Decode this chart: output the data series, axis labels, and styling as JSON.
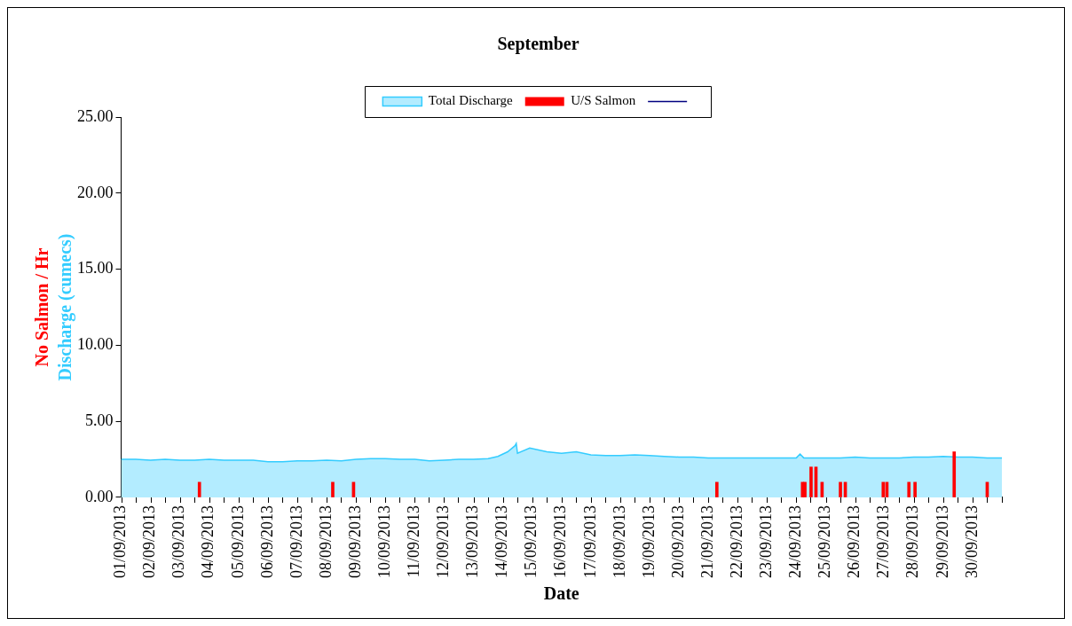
{
  "chart_data": {
    "type": "area",
    "title": "September",
    "xlabel": "Date",
    "ylabel": [
      "No Salmon / Hr",
      "Discharge (cumecs)"
    ],
    "xlim": [
      "2013-09-01",
      "2013-10-01"
    ],
    "xticks": [
      {
        "value": "2013-09-01",
        "label": "01/09/2013"
      },
      {
        "value": "2013-09-02",
        "label": "02/09/2013"
      },
      {
        "value": "2013-09-03",
        "label": "03/09/2013"
      },
      {
        "value": "2013-09-04",
        "label": "04/09/2013"
      },
      {
        "value": "2013-09-05",
        "label": "05/09/2013"
      },
      {
        "value": "2013-09-06",
        "label": "06/09/2013"
      },
      {
        "value": "2013-09-07",
        "label": "07/09/2013"
      },
      {
        "value": "2013-09-08",
        "label": "08/09/2013"
      },
      {
        "value": "2013-09-09",
        "label": "09/09/2013"
      },
      {
        "value": "2013-09-10",
        "label": "10/09/2013"
      },
      {
        "value": "2013-09-11",
        "label": "11/09/2013"
      },
      {
        "value": "2013-09-12",
        "label": "12/09/2013"
      },
      {
        "value": "2013-09-13",
        "label": "13/09/2013"
      },
      {
        "value": "2013-09-14",
        "label": "14/09/2013"
      },
      {
        "value": "2013-09-15",
        "label": "15/09/2013"
      },
      {
        "value": "2013-09-16",
        "label": "16/09/2013"
      },
      {
        "value": "2013-09-17",
        "label": "17/09/2013"
      },
      {
        "value": "2013-09-18",
        "label": "18/09/2013"
      },
      {
        "value": "2013-09-19",
        "label": "19/09/2013"
      },
      {
        "value": "2013-09-20",
        "label": "20/09/2013"
      },
      {
        "value": "2013-09-21",
        "label": "21/09/2013"
      },
      {
        "value": "2013-09-22",
        "label": "22/09/2013"
      },
      {
        "value": "2013-09-23",
        "label": "23/09/2013"
      },
      {
        "value": "2013-09-24",
        "label": "24/09/2013"
      },
      {
        "value": "2013-09-25",
        "label": "25/09/2013"
      },
      {
        "value": "2013-09-26",
        "label": "26/09/2013"
      },
      {
        "value": "2013-09-27",
        "label": "27/09/2013"
      },
      {
        "value": "2013-09-28",
        "label": "28/09/2013"
      },
      {
        "value": "2013-09-29",
        "label": "29/09/2013"
      },
      {
        "value": "2013-09-30",
        "label": "30/09/2013"
      },
      {
        "value": "2013-10-01",
        "label": null
      }
    ],
    "ylim": [
      0,
      25
    ],
    "yticks": [
      {
        "value": 0,
        "label": "0.00"
      },
      {
        "value": 5,
        "label": "5.00"
      },
      {
        "value": 10,
        "label": "10.00"
      },
      {
        "value": 15,
        "label": "15.00"
      },
      {
        "value": 20,
        "label": "20.00"
      },
      {
        "value": 25,
        "label": "25.00"
      }
    ],
    "grid": false,
    "legend": "top",
    "series": [
      {
        "name": "Total Discharge",
        "color": "#33ccff",
        "x": [
          "2013-09-01T00:00",
          "2013-09-01T12:00",
          "2013-09-02T00:00",
          "2013-09-02T12:00",
          "2013-09-03T00:00",
          "2013-09-03T12:00",
          "2013-09-04T00:00",
          "2013-09-04T12:00",
          "2013-09-05T00:00",
          "2013-09-05T12:00",
          "2013-09-06T00:00",
          "2013-09-06T12:00",
          "2013-09-07T00:00",
          "2013-09-07T12:00",
          "2013-09-08T00:00",
          "2013-09-08T12:00",
          "2013-09-09T00:00",
          "2013-09-09T12:00",
          "2013-09-10T00:00",
          "2013-09-10T12:00",
          "2013-09-11T00:00",
          "2013-09-11T12:00",
          "2013-09-12T00:00",
          "2013-09-12T12:00",
          "2013-09-13T00:00",
          "2013-09-13T12:00",
          "2013-09-13T20:00",
          "2013-09-14T04:00",
          "2013-09-14T10:00",
          "2013-09-14T11:00",
          "2013-09-14T12:00",
          "2013-09-14T22:00",
          "2013-09-15T12:00",
          "2013-09-16T00:00",
          "2013-09-16T12:00",
          "2013-09-17T00:00",
          "2013-09-17T12:00",
          "2013-09-18T00:00",
          "2013-09-18T12:00",
          "2013-09-19T00:00",
          "2013-09-19T12:00",
          "2013-09-20T00:00",
          "2013-09-20T12:00",
          "2013-09-21T00:00",
          "2013-09-21T12:00",
          "2013-09-22T00:00",
          "2013-09-22T12:00",
          "2013-09-23T00:00",
          "2013-09-23T12:00",
          "2013-09-24T00:00",
          "2013-09-24T03:00",
          "2013-09-24T06:00",
          "2013-09-24T12:00",
          "2013-09-25T00:00",
          "2013-09-25T12:00",
          "2013-09-26T00:00",
          "2013-09-26T12:00",
          "2013-09-27T00:00",
          "2013-09-27T12:00",
          "2013-09-28T00:00",
          "2013-09-28T12:00",
          "2013-09-29T00:00",
          "2013-09-29T12:00",
          "2013-09-30T00:00",
          "2013-09-30T12:00",
          "2013-10-01T00:00"
        ],
        "values": [
          2.5,
          2.5,
          2.45,
          2.5,
          2.45,
          2.45,
          2.5,
          2.45,
          2.45,
          2.45,
          2.35,
          2.35,
          2.4,
          2.4,
          2.45,
          2.4,
          2.5,
          2.55,
          2.55,
          2.5,
          2.5,
          2.4,
          2.45,
          2.5,
          2.5,
          2.55,
          2.7,
          3.0,
          3.4,
          3.55,
          2.9,
          3.25,
          3.0,
          2.9,
          3.0,
          2.8,
          2.75,
          2.75,
          2.8,
          2.75,
          2.7,
          2.65,
          2.65,
          2.6,
          2.6,
          2.6,
          2.6,
          2.6,
          2.6,
          2.6,
          2.85,
          2.6,
          2.6,
          2.6,
          2.6,
          2.65,
          2.6,
          2.6,
          2.6,
          2.65,
          2.65,
          2.7,
          2.65,
          2.65,
          2.6,
          2.6
        ]
      },
      {
        "type": "bar",
        "name": "U/S Salmon",
        "color": "#ff0000",
        "x": [
          "2013-09-03T16:00",
          "2013-09-08T05:00",
          "2013-09-08T22:00",
          "2013-09-21T07:00",
          "2013-09-24T05:00",
          "2013-09-24T07:00",
          "2013-09-24T12:00",
          "2013-09-24T16:00",
          "2013-09-24T21:00",
          "2013-09-25T12:00",
          "2013-09-25T16:00",
          "2013-09-26T23:00",
          "2013-09-27T02:00",
          "2013-09-27T20:00",
          "2013-09-28T01:00",
          "2013-09-29T09:00",
          "2013-09-30T12:00"
        ],
        "values": [
          1,
          1,
          1,
          1,
          1,
          1,
          2,
          2,
          1,
          1,
          1,
          1,
          1,
          1,
          1,
          3,
          1
        ]
      },
      {
        "type": "line",
        "color": "#000080"
      }
    ]
  }
}
